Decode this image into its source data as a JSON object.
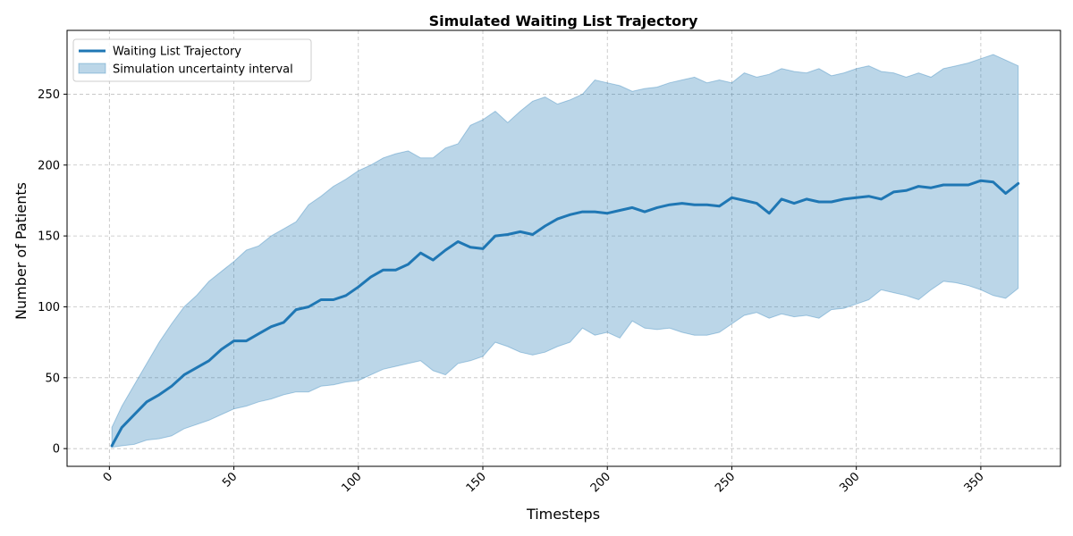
{
  "chart_data": {
    "type": "line",
    "title": "Simulated Waiting List Trajectory",
    "xlabel": "Timesteps",
    "ylabel": "Number of Patients",
    "xlim": [
      -17,
      382
    ],
    "ylim": [
      -12.5,
      295
    ],
    "xticks": [
      0,
      50,
      100,
      150,
      200,
      250,
      300,
      350
    ],
    "yticks": [
      0,
      50,
      100,
      150,
      200,
      250
    ],
    "xtick_rotation": 45,
    "grid": true,
    "legend_position": "top-left",
    "colors": {
      "line": "#1f77b4",
      "band": "#1f77b4"
    },
    "series": [
      {
        "name": "Waiting List Trajectory",
        "kind": "line",
        "x": [
          1,
          5,
          10,
          15,
          20,
          25,
          30,
          35,
          40,
          45,
          50,
          55,
          60,
          65,
          70,
          75,
          80,
          85,
          90,
          95,
          100,
          105,
          110,
          115,
          120,
          125,
          130,
          135,
          140,
          145,
          150,
          155,
          160,
          165,
          170,
          175,
          180,
          185,
          190,
          195,
          200,
          205,
          210,
          215,
          220,
          225,
          230,
          235,
          240,
          245,
          250,
          255,
          260,
          265,
          270,
          275,
          280,
          285,
          290,
          295,
          300,
          305,
          310,
          315,
          320,
          325,
          330,
          335,
          340,
          345,
          350,
          355,
          360,
          365
        ],
        "values": [
          2,
          15,
          24,
          33,
          38,
          44,
          52,
          57,
          62,
          70,
          76,
          76,
          81,
          86,
          89,
          98,
          100,
          105,
          105,
          108,
          114,
          121,
          126,
          126,
          130,
          138,
          133,
          140,
          146,
          142,
          141,
          150,
          151,
          153,
          151,
          157,
          162,
          165,
          167,
          167,
          166,
          168,
          170,
          167,
          170,
          172,
          173,
          172,
          172,
          171,
          177,
          175,
          173,
          166,
          176,
          173,
          176,
          174,
          174,
          176,
          177,
          178,
          176,
          181,
          182,
          185,
          184,
          186,
          186,
          186,
          189,
          188,
          180,
          187
        ]
      },
      {
        "name": "Simulation uncertainty interval",
        "kind": "band",
        "x": [
          1,
          5,
          10,
          15,
          20,
          25,
          30,
          35,
          40,
          45,
          50,
          55,
          60,
          65,
          70,
          75,
          80,
          85,
          90,
          95,
          100,
          105,
          110,
          115,
          120,
          125,
          130,
          135,
          140,
          145,
          150,
          155,
          160,
          165,
          170,
          175,
          180,
          185,
          190,
          195,
          200,
          205,
          210,
          215,
          220,
          225,
          230,
          235,
          240,
          245,
          250,
          255,
          260,
          265,
          270,
          275,
          280,
          285,
          290,
          295,
          300,
          305,
          310,
          315,
          320,
          325,
          330,
          335,
          340,
          345,
          350,
          355,
          360,
          365
        ],
        "lower": [
          1,
          2,
          3,
          6,
          7,
          9,
          14,
          17,
          20,
          24,
          28,
          30,
          33,
          35,
          38,
          40,
          40,
          44,
          45,
          47,
          48,
          52,
          56,
          58,
          60,
          62,
          55,
          52,
          60,
          62,
          65,
          75,
          72,
          68,
          66,
          68,
          72,
          75,
          85,
          80,
          82,
          78,
          90,
          85,
          84,
          85,
          82,
          80,
          80,
          82,
          88,
          94,
          96,
          92,
          95,
          93,
          94,
          92,
          98,
          99,
          102,
          105,
          112,
          110,
          108,
          105,
          112,
          118,
          117,
          115,
          112,
          108,
          106,
          113
        ],
        "upper": [
          15,
          30,
          45,
          60,
          75,
          88,
          100,
          108,
          118,
          125,
          132,
          140,
          143,
          150,
          155,
          160,
          172,
          178,
          185,
          190,
          196,
          200,
          205,
          208,
          210,
          205,
          205,
          212,
          215,
          228,
          232,
          238,
          230,
          238,
          245,
          248,
          243,
          246,
          250,
          260,
          258,
          256,
          252,
          254,
          255,
          258,
          260,
          262,
          258,
          260,
          258,
          265,
          262,
          264,
          268,
          266,
          265,
          268,
          263,
          265,
          268,
          270,
          266,
          265,
          262,
          265,
          262,
          268,
          270,
          272,
          275,
          278,
          274,
          270
        ]
      }
    ]
  }
}
